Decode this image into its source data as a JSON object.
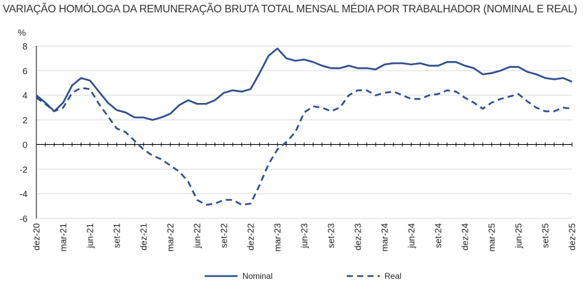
{
  "chart_data": {
    "type": "line",
    "title": "VARIAÇÃO HOMÓLOGA DA REMUNERAÇÃO BRUTA TOTAL MENSAL MÉDIA POR TRABALHADOR (NOMINAL E REAL)",
    "ylabel": "%",
    "xlabel": "",
    "ylim": [
      -6,
      8
    ],
    "yticks": [
      8,
      6,
      4,
      2,
      0,
      -2,
      -4,
      -6
    ],
    "x_tick_labels": [
      "dez-20",
      "mar-21",
      "jun-21",
      "set-21",
      "dez-21",
      "mar-22",
      "jun-22",
      "set-22",
      "dez-22",
      "mar-23",
      "jun-23",
      "set-23",
      "dez-23",
      "mar-24",
      "jun-24",
      "set-24",
      "dez-24",
      "mar-25",
      "jun-25",
      "set-25",
      "dez-25"
    ],
    "x_tick_step_months": 3,
    "start_month": "dez-20",
    "grid": true,
    "legend_position": "bottom",
    "series": [
      {
        "name": "Nominal",
        "color": "#2E4F8F",
        "style": "solid",
        "values": [
          4.0,
          3.4,
          2.7,
          3.4,
          4.8,
          5.4,
          5.2,
          4.3,
          3.4,
          2.8,
          2.6,
          2.2,
          2.2,
          2.0,
          2.2,
          2.5,
          3.2,
          3.6,
          3.3,
          3.3,
          3.6,
          4.2,
          4.4,
          4.3,
          4.5,
          5.8,
          7.2,
          7.8,
          7.0,
          6.8,
          6.9,
          6.7,
          6.4,
          6.2,
          6.2,
          6.4,
          6.2,
          6.2,
          6.1,
          6.5,
          6.6,
          6.6,
          6.5,
          6.6,
          6.4,
          6.4,
          6.7,
          6.7,
          6.4,
          6.2,
          5.7,
          5.8,
          6.0,
          6.3,
          6.3,
          5.9,
          5.7,
          5.4,
          5.3,
          5.4,
          5.1
        ]
      },
      {
        "name": "Real",
        "color": "#2E4F8F",
        "style": "dashed",
        "values": [
          3.8,
          3.3,
          2.7,
          3.0,
          4.2,
          4.6,
          4.5,
          3.3,
          2.3,
          1.3,
          1.0,
          0.3,
          -0.4,
          -0.9,
          -1.2,
          -1.7,
          -2.2,
          -3.0,
          -4.5,
          -4.9,
          -4.8,
          -4.5,
          -4.5,
          -4.9,
          -4.8,
          -3.3,
          -1.6,
          -0.4,
          0.2,
          1.0,
          2.6,
          3.1,
          3.0,
          2.7,
          3.0,
          4.0,
          4.4,
          4.4,
          4.0,
          4.2,
          4.3,
          4.0,
          3.7,
          3.7,
          4.0,
          4.1,
          4.4,
          4.3,
          3.8,
          3.4,
          2.9,
          3.4,
          3.7,
          3.9,
          4.1,
          3.5,
          3.0,
          2.7,
          2.7,
          3.0,
          2.9
        ]
      }
    ]
  }
}
